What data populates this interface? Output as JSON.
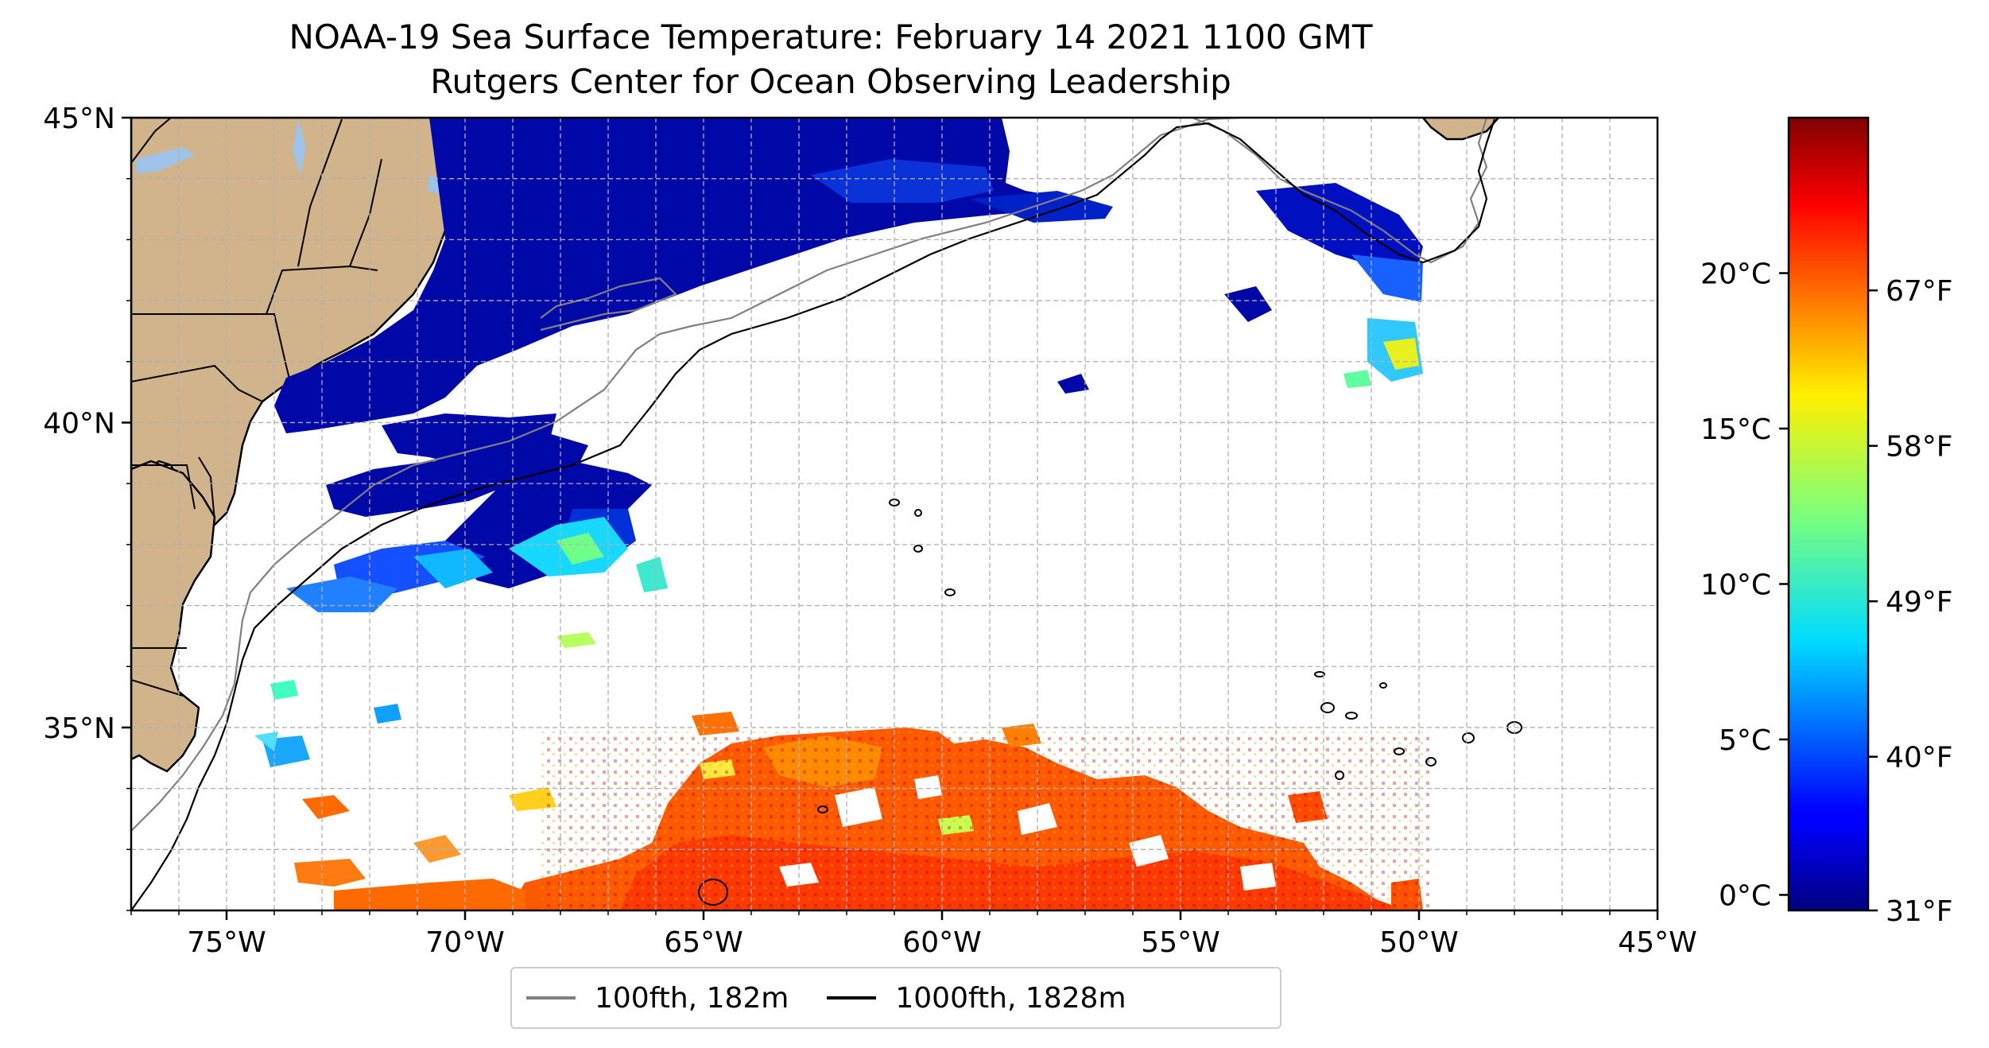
{
  "title_line1": "NOAA-19 Sea Surface Temperature: February 14 2021 1100 GMT",
  "title_line2": "Rutgers Center for Ocean Observing Leadership",
  "map": {
    "lon_range": [
      -77,
      -45
    ],
    "lat_range": [
      32,
      45
    ],
    "x_ticks": [
      {
        "value": -75,
        "label": "75°W"
      },
      {
        "value": -70,
        "label": "70°W"
      },
      {
        "value": -65,
        "label": "65°W"
      },
      {
        "value": -60,
        "label": "60°W"
      },
      {
        "value": -55,
        "label": "55°W"
      },
      {
        "value": -50,
        "label": "50°W"
      },
      {
        "value": -45,
        "label": "45°W"
      }
    ],
    "y_ticks": [
      {
        "value": 45,
        "label": "45°N"
      },
      {
        "value": 40,
        "label": "40°N"
      },
      {
        "value": 35,
        "label": "35°N"
      }
    ],
    "gridlines": true,
    "colors": {
      "land": "#d2b48c",
      "lakes": "#9ec2ea",
      "contour_100fth": "#808080",
      "contour_1000fth": "#000000"
    }
  },
  "colorbar": {
    "colormap": "jet",
    "range_celsius": [
      -0.5,
      25
    ],
    "celsius_ticks": [
      {
        "value": 0,
        "label": "0°C"
      },
      {
        "value": 5,
        "label": "5°C"
      },
      {
        "value": 10,
        "label": "10°C"
      },
      {
        "value": 15,
        "label": "15°C"
      },
      {
        "value": 20,
        "label": "20°C"
      }
    ],
    "fahrenheit_ticks": [
      {
        "value": 31,
        "label": "31°F"
      },
      {
        "value": 40,
        "label": "40°F"
      },
      {
        "value": 49,
        "label": "49°F"
      },
      {
        "value": 58,
        "label": "58°F"
      },
      {
        "value": 67,
        "label": "67°F"
      }
    ]
  },
  "legend": {
    "items": [
      {
        "label": "100fth, 182m",
        "color": "#808080"
      },
      {
        "label": "1000fth, 1828m",
        "color": "#000000"
      }
    ]
  }
}
